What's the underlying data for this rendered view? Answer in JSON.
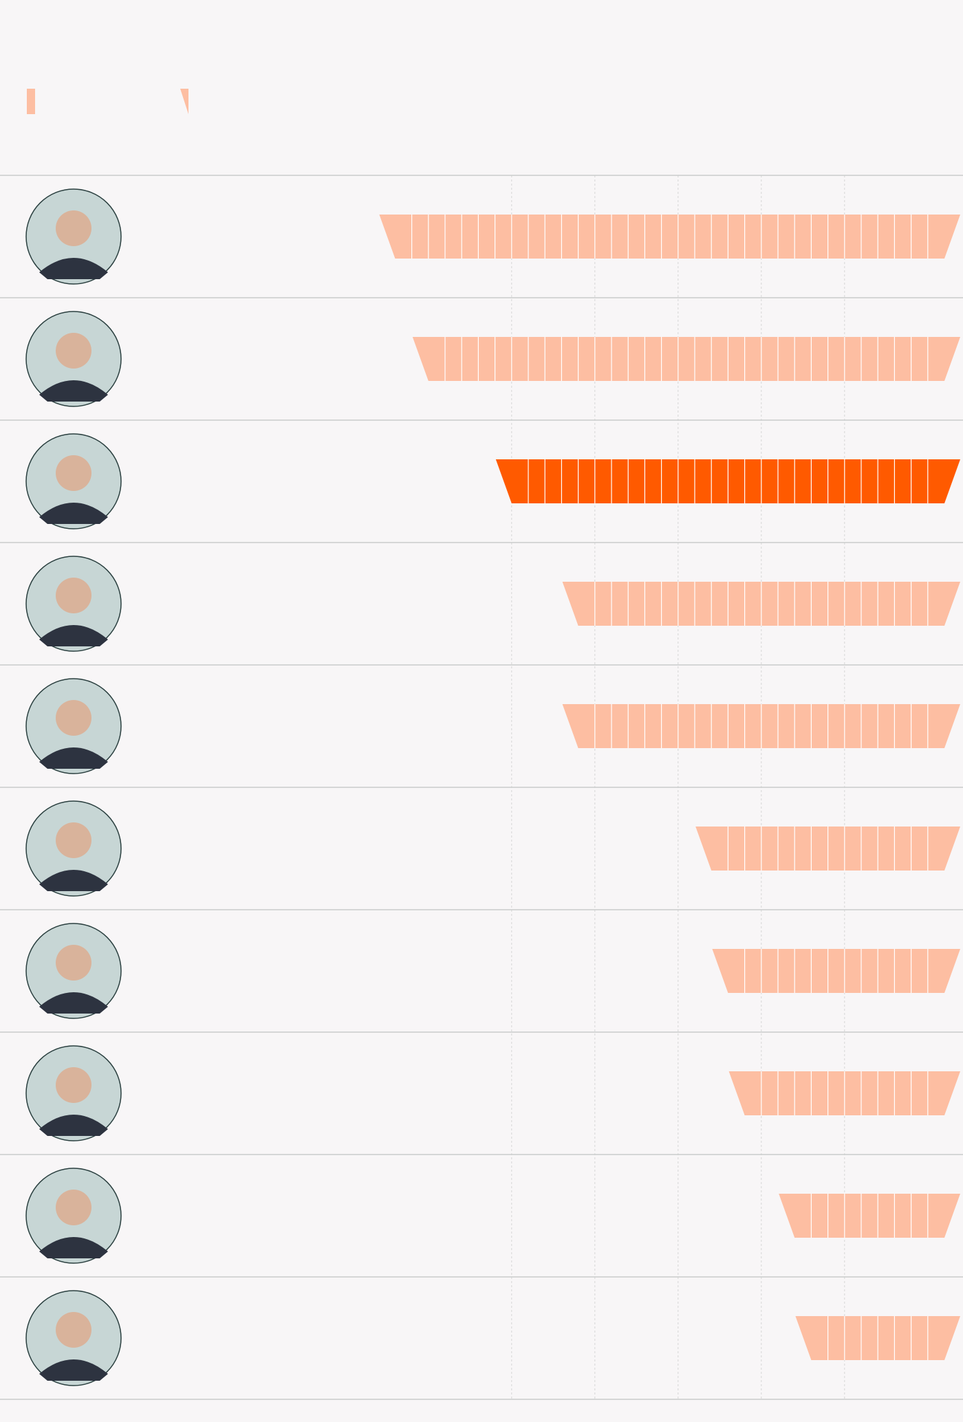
{
  "colors": {
    "background": "#f8f6f7",
    "bar_default": "#fdbea2",
    "bar_highlight": "#ff5a00",
    "segment_divider": "#ffffff",
    "row_divider": "#c9cccb",
    "grid": "#d6d6d6",
    "avatar_fill": "#c7d6d5",
    "avatar_stroke": "#2a3f3f"
  },
  "legend": {
    "items": [
      {
        "icon": "legend-bar-block-swatch"
      },
      {
        "icon": "legend-bar-end-wedge-swatch"
      }
    ]
  },
  "chart_data": {
    "type": "bar",
    "orientation": "horizontal",
    "unit": "segments",
    "grid": true,
    "gridlines": [
      6,
      11,
      16,
      21,
      26
    ],
    "xlim": [
      0,
      33
    ],
    "rows": [
      {
        "portrait": "leader-portrait-1-icon",
        "value": 33,
        "highlight": false
      },
      {
        "portrait": "leader-portrait-2-icon",
        "value": 31,
        "highlight": false
      },
      {
        "portrait": "leader-portrait-3-icon",
        "value": 26,
        "highlight": true
      },
      {
        "portrait": "leader-portrait-4-icon",
        "value": 22,
        "highlight": false
      },
      {
        "portrait": "leader-portrait-5-icon",
        "value": 22,
        "highlight": false
      },
      {
        "portrait": "leader-portrait-6-icon",
        "value": 14,
        "highlight": false
      },
      {
        "portrait": "leader-portrait-7-icon",
        "value": 13,
        "highlight": false
      },
      {
        "portrait": "leader-portrait-8-icon",
        "value": 12,
        "highlight": false
      },
      {
        "portrait": "leader-portrait-9-icon",
        "value": 9,
        "highlight": false
      },
      {
        "portrait": "leader-portrait-10-icon",
        "value": 8,
        "highlight": false
      }
    ]
  }
}
